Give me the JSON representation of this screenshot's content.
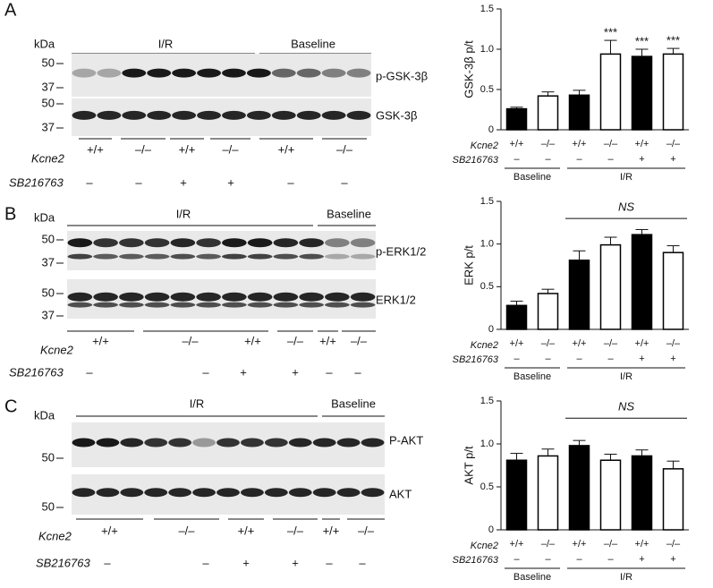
{
  "blots": [
    {
      "panel": "A",
      "kda": "kDa",
      "groups": [
        "I/R",
        "Baseline"
      ],
      "markers": [
        "50",
        "37",
        "50",
        "37"
      ],
      "bands": [
        "p-GSK-3β",
        "GSK-3β"
      ],
      "row_labels": [
        "Kcne2",
        "SB216763"
      ],
      "genotypes": [
        "+/+",
        "–/–",
        "+/+",
        "–/–",
        "+/+",
        "–/–"
      ],
      "sb": [
        "–",
        "–",
        "+",
        "+",
        "–",
        "–"
      ]
    },
    {
      "panel": "B",
      "kda": "kDa",
      "groups": [
        "I/R",
        "Baseline"
      ],
      "markers": [
        "50",
        "37",
        "50",
        "37"
      ],
      "bands": [
        "p-ERK1/2",
        "ERK1/2"
      ],
      "row_labels": [
        "Kcne2",
        "SB216763"
      ],
      "genotypes": [
        "+/+",
        "–/–",
        "+/+",
        "–/–",
        "+/+",
        "–/–"
      ],
      "sb": [
        "–",
        "–",
        "+",
        "+",
        "–",
        "–"
      ]
    },
    {
      "panel": "C",
      "kda": "kDa",
      "groups": [
        "I/R",
        "Baseline"
      ],
      "markers": [
        "50",
        "50"
      ],
      "bands": [
        "P-AKT",
        "AKT"
      ],
      "row_labels": [
        "Kcne2",
        "SB216763"
      ],
      "genotypes": [
        "+/+",
        "–/–",
        "+/+",
        "–/–",
        "+/+",
        "–/–"
      ],
      "sb": [
        "–",
        "–",
        "+",
        "+",
        "–",
        "–"
      ]
    }
  ],
  "chart_data": [
    {
      "type": "bar",
      "y_label": "GSK-3β p/t",
      "categories": [
        "+/+",
        "–/–",
        "+/+",
        "–/–",
        "+/+",
        "–/–"
      ],
      "sb216763": [
        "–",
        "–",
        "–",
        "–",
        "+",
        "+"
      ],
      "row_labels": [
        "Kcne2",
        "SB216763"
      ],
      "groups": [
        "Baseline",
        "I/R"
      ],
      "values": [
        0.26,
        0.42,
        0.43,
        0.94,
        0.91,
        0.94
      ],
      "errors": [
        0.02,
        0.05,
        0.06,
        0.17,
        0.09,
        0.07
      ],
      "colors": [
        "#000000",
        "#ffffff",
        "#000000",
        "#ffffff",
        "#000000",
        "#ffffff"
      ],
      "annotations": [
        null,
        null,
        null,
        "***",
        "***",
        "***"
      ],
      "ylim": [
        0,
        1.5
      ],
      "yticks": [
        0,
        0.5,
        {
          "value": 1,
          "label": "1.0"
        },
        1.5
      ]
    },
    {
      "type": "bar",
      "y_label": "ERK p/t",
      "categories": [
        "+/+",
        "–/–",
        "+/+",
        "–/–",
        "+/+",
        "–/–"
      ],
      "sb216763": [
        "–",
        "–",
        "–",
        "–",
        "+",
        "+"
      ],
      "row_labels": [
        "Kcne2",
        "SB216763"
      ],
      "groups": [
        "Baseline",
        "I/R"
      ],
      "values": [
        0.28,
        0.42,
        0.81,
        0.99,
        1.11,
        0.9
      ],
      "errors": [
        0.05,
        0.05,
        0.11,
        0.09,
        0.06,
        0.08
      ],
      "colors": [
        "#000000",
        "#ffffff",
        "#000000",
        "#ffffff",
        "#000000",
        "#ffffff"
      ],
      "bracket_label": "NS",
      "ylim": [
        0,
        1.5
      ],
      "yticks": [
        0,
        0.5,
        {
          "value": 1,
          "label": "1.0"
        },
        1.5
      ]
    },
    {
      "type": "bar",
      "y_label": "AKT p/t",
      "categories": [
        "+/+",
        "–/–",
        "+/+",
        "–/–",
        "+/+",
        "–/–"
      ],
      "sb216763": [
        "–",
        "–",
        "–",
        "–",
        "+",
        "+"
      ],
      "row_labels": [
        "Kcne2",
        "SB216763"
      ],
      "groups": [
        "Baseline",
        "I/R"
      ],
      "values": [
        0.81,
        0.86,
        0.98,
        0.81,
        0.86,
        0.71
      ],
      "errors": [
        0.08,
        0.08,
        0.06,
        0.07,
        0.07,
        0.09
      ],
      "colors": [
        "#000000",
        "#ffffff",
        "#000000",
        "#ffffff",
        "#000000",
        "#ffffff"
      ],
      "bracket_label": "NS",
      "ylim": [
        0,
        1.5
      ],
      "yticks": [
        0,
        0.5,
        {
          "value": 1,
          "label": "1.0"
        },
        1.5
      ]
    }
  ]
}
